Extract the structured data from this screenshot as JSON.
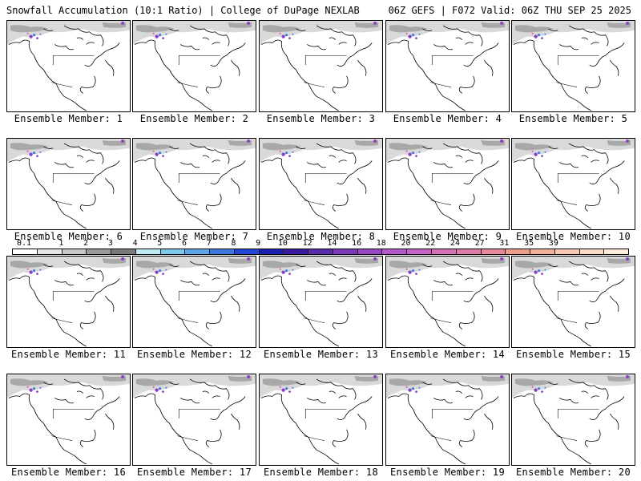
{
  "header": {
    "title_left": "Snowfall Accumulation (10:1 Ratio) | College of DuPage NEXLAB",
    "title_right": "06Z GEFS | F072 Valid: 06Z THU SEP 25 2025"
  },
  "panels": [
    {
      "label": "Ensemble Member: 1"
    },
    {
      "label": "Ensemble Member: 2"
    },
    {
      "label": "Ensemble Member: 3"
    },
    {
      "label": "Ensemble Member: 4"
    },
    {
      "label": "Ensemble Member: 5"
    },
    {
      "label": "Ensemble Member: 6"
    },
    {
      "label": "Ensemble Member: 7"
    },
    {
      "label": "Ensemble Member: 8"
    },
    {
      "label": "Ensemble Member: 9"
    },
    {
      "label": "Ensemble Member: 10"
    },
    {
      "label": "Ensemble Member: 11"
    },
    {
      "label": "Ensemble Member: 12"
    },
    {
      "label": "Ensemble Member: 13"
    },
    {
      "label": "Ensemble Member: 14"
    },
    {
      "label": "Ensemble Member: 15"
    },
    {
      "label": "Ensemble Member: 16"
    },
    {
      "label": "Ensemble Member: 17"
    },
    {
      "label": "Ensemble Member: 18"
    },
    {
      "label": "Ensemble Member: 19"
    },
    {
      "label": "Ensemble Member: 20"
    }
  ],
  "legend": {
    "labels": [
      "0.1",
      "1",
      "2",
      "3",
      "4",
      "5",
      "6",
      "7",
      "8",
      "9",
      "10",
      "12",
      "14",
      "16",
      "18",
      "20",
      "22",
      "24",
      "27",
      "31",
      "35",
      "39"
    ],
    "colors": [
      "#ffffff",
      "#e6e6e6",
      "#c8c8c8",
      "#9a9a9a",
      "#7a7a7a",
      "#bfe9f5",
      "#7ec8ee",
      "#5aa6e8",
      "#3c78e0",
      "#2446d6",
      "#1a1fb0",
      "#3a1aa0",
      "#5a2aa8",
      "#7a3ab8",
      "#9a46c4",
      "#b456cc",
      "#c864c8",
      "#d870b8",
      "#e07aa8",
      "#e8889a",
      "#f09c8c",
      "#f4b098",
      "#f8c8b0",
      "#fbdcc8",
      "#fdecdc"
    ]
  },
  "map_colors": {
    "snow_light": "#d9d9d9",
    "snow_mid": "#a8a8a8",
    "snow_purple": "#8a3fc8",
    "snow_blue": "#3c78e0",
    "snow_pink": "#d870b8",
    "coast": "#000000"
  }
}
